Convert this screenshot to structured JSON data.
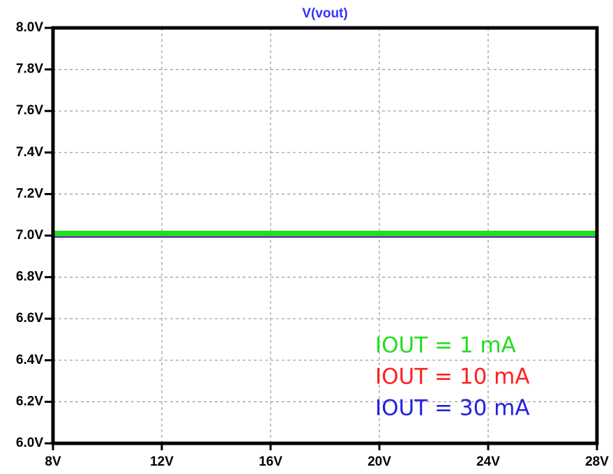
{
  "chart_data": {
    "type": "line",
    "title": "V(vout)",
    "title_color": "#3333ff",
    "x": [
      8,
      28
    ],
    "series": [
      {
        "name": "IOUT = 1 mA",
        "color": "#22dd22",
        "values": [
          7.01,
          7.01
        ]
      },
      {
        "name": "IOUT = 10 mA",
        "color": "#ff2020",
        "values": [
          7.0,
          7.0
        ]
      },
      {
        "name": "IOUT = 30 mA",
        "color": "#2222dd",
        "values": [
          6.995,
          6.995
        ]
      }
    ],
    "xlim": [
      8,
      28
    ],
    "xticks": [
      {
        "value": 8,
        "label": "8V"
      },
      {
        "value": 12,
        "label": "12V"
      },
      {
        "value": 16,
        "label": "16V"
      },
      {
        "value": 20,
        "label": "20V"
      },
      {
        "value": 24,
        "label": "24V"
      },
      {
        "value": 28,
        "label": "28V"
      }
    ],
    "ylim": [
      6.0,
      8.0
    ],
    "yticks": [
      {
        "value": 6.0,
        "label": "6.0V"
      },
      {
        "value": 6.2,
        "label": "6.2V"
      },
      {
        "value": 6.4,
        "label": "6.4V"
      },
      {
        "value": 6.6,
        "label": "6.6V"
      },
      {
        "value": 6.8,
        "label": "6.8V"
      },
      {
        "value": 7.0,
        "label": "7.0V"
      },
      {
        "value": 7.2,
        "label": "7.2V"
      },
      {
        "value": 7.4,
        "label": "7.4V"
      },
      {
        "value": 7.6,
        "label": "7.6V"
      },
      {
        "value": 7.8,
        "label": "7.8V"
      },
      {
        "value": 8.0,
        "label": "8.0V"
      }
    ],
    "grid": true,
    "legend": "lower right"
  }
}
